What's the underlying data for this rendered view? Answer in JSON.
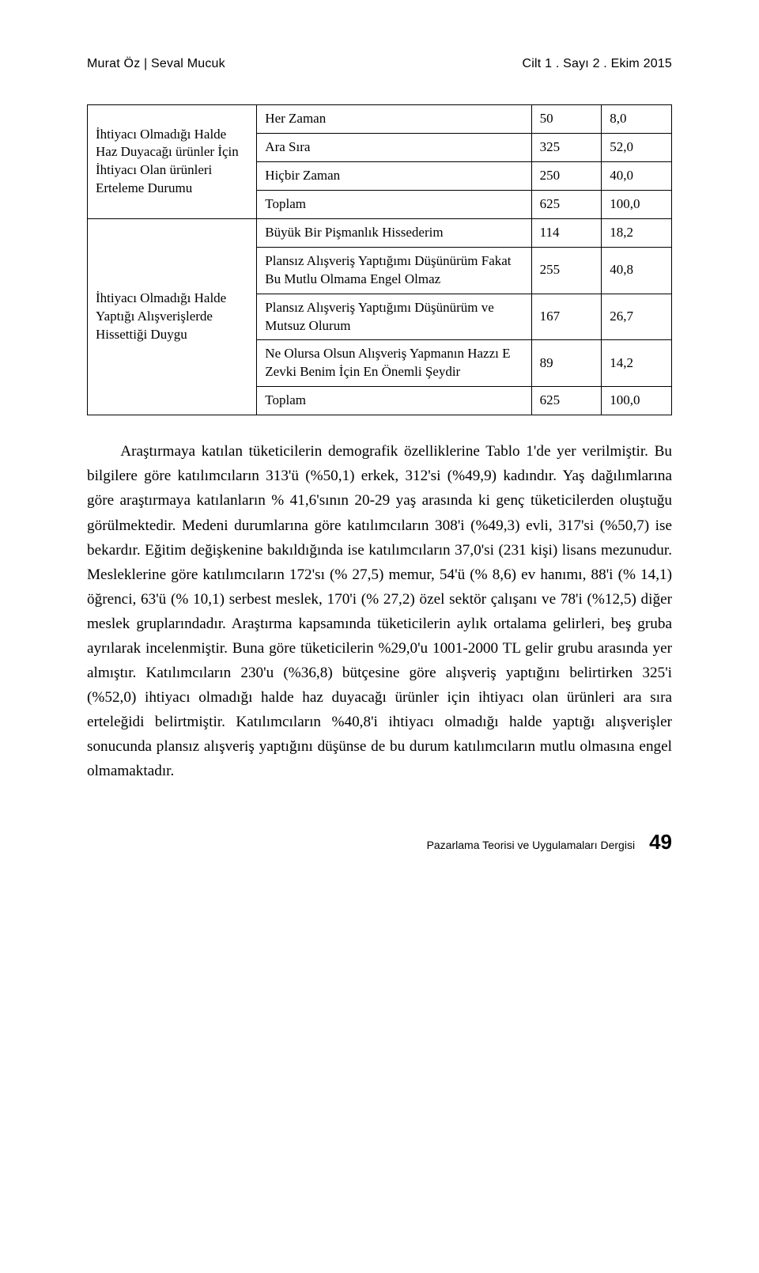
{
  "header": {
    "authors": "Murat Öz | Seval Mucuk",
    "issue": "Cilt 1 . Sayı 2 . Ekim 2015"
  },
  "table": {
    "groups": [
      {
        "label": "İhtiyacı Olmadığı Halde Haz Duyacağı ürünler İçin İhtiyacı Olan ürünleri Erteleme Durumu",
        "rows": [
          {
            "attr": "Her Zaman",
            "n": "50",
            "pct": "8,0"
          },
          {
            "attr": "Ara Sıra",
            "n": "325",
            "pct": "52,0"
          },
          {
            "attr": "Hiçbir Zaman",
            "n": "250",
            "pct": "40,0"
          },
          {
            "attr": "Toplam",
            "n": "625",
            "pct": "100,0"
          }
        ]
      },
      {
        "label": "İhtiyacı Olmadığı Halde Yaptığı Alışverişlerde Hissettiği Duygu",
        "rows": [
          {
            "attr": "Büyük Bir Pişmanlık Hissederim",
            "n": "114",
            "pct": "18,2"
          },
          {
            "attr": "Plansız Alışveriş Yaptığımı Düşünürüm Fakat Bu Mutlu Olmama Engel Olmaz",
            "n": "255",
            "pct": "40,8"
          },
          {
            "attr": "Plansız Alışveriş Yaptığımı Düşünürüm ve Mutsuz Olurum",
            "n": "167",
            "pct": "26,7"
          },
          {
            "attr": "Ne Olursa Olsun Alışveriş Yapmanın Hazzı E Zevki Benim İçin En Önemli Şeydir",
            "n": "89",
            "pct": "14,2"
          },
          {
            "attr": "Toplam",
            "n": "625",
            "pct": "100,0"
          }
        ]
      }
    ]
  },
  "body": {
    "paragraph": "Araştırmaya katılan tüketicilerin demografik özelliklerine Tablo 1'de yer verilmiştir. Bu bilgilere göre katılımcıların 313'ü (%50,1) erkek, 312'si (%49,9) kadındır. Yaş dağılımlarına göre araştırmaya katılanların % 41,6'sının 20-29 yaş arasında ki genç tüketicilerden oluştuğu görülmektedir. Medeni durumlarına göre katılımcıların 308'i (%49,3) evli, 317'si (%50,7) ise bekardır. Eğitim değişkenine bakıldığında ise katılımcıların 37,0'si (231 kişi) lisans mezunudur. Mesleklerine göre katılımcıların 172'sı (% 27,5) memur, 54'ü (% 8,6) ev hanımı, 88'i (% 14,1) öğrenci, 63'ü (% 10,1) serbest meslek, 170'i (% 27,2) özel sektör çalışanı ve 78'i (%12,5) diğer meslek gruplarındadır. Araştırma kapsamında tüketicilerin aylık ortalama gelirleri, beş gruba ayrılarak incelenmiştir. Buna göre tüketicilerin %29,0'u 1001-2000 TL gelir grubu arasında yer almıştır. Katılımcıların 230'u (%36,8) bütçesine göre alışveriş yaptığını belirtirken 325'i (%52,0) ihtiyacı olmadığı halde haz duyacağı ürünler için ihtiyacı olan ürünleri ara sıra erteleğidi belirtmiştir. Katılımcıların %40,8'i ihtiyacı olmadığı halde yaptığı alışverişler sonucunda plansız alışveriş yaptığını düşünse de bu durum katılımcıların mutlu olmasına engel olmamaktadır."
  },
  "footer": {
    "journal": "Pazarlama Teorisi ve Uygulamaları Dergisi",
    "page": "49"
  }
}
